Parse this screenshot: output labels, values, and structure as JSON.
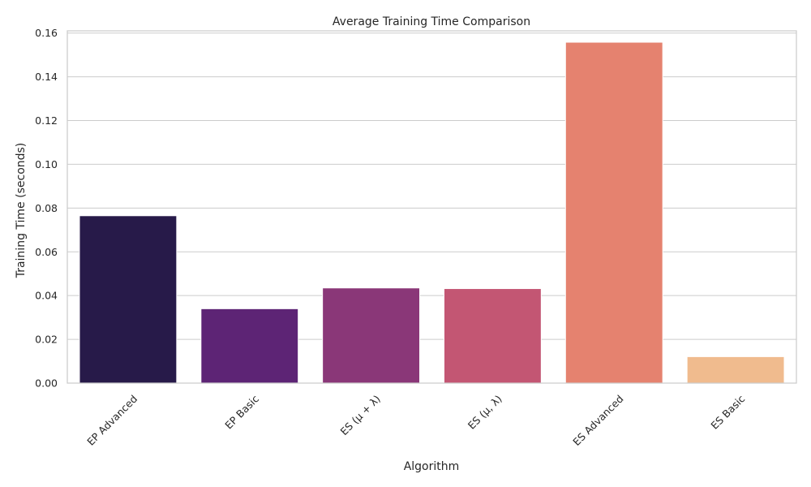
{
  "chart_data": {
    "type": "bar",
    "title": "Average Training Time Comparison",
    "xlabel": "Algorithm",
    "ylabel": "Training Time (seconds)",
    "categories": [
      "EP Advanced",
      "EP Basic",
      "ES (μ + λ)",
      "ES (μ, λ)",
      "ES Advanced",
      "ES Basic"
    ],
    "values": [
      0.0765,
      0.034,
      0.0435,
      0.0432,
      0.1558,
      0.0121
    ],
    "colors": [
      "#271a49",
      "#5d2475",
      "#8a3778",
      "#c35673",
      "#e5826f",
      "#f0bb8e"
    ],
    "ylim": [
      0,
      0.161
    ],
    "yticks": [
      "0.00",
      "0.02",
      "0.04",
      "0.06",
      "0.08",
      "0.10",
      "0.12",
      "0.14",
      "0.16"
    ],
    "grid": true,
    "x_tick_rotation": 45
  }
}
